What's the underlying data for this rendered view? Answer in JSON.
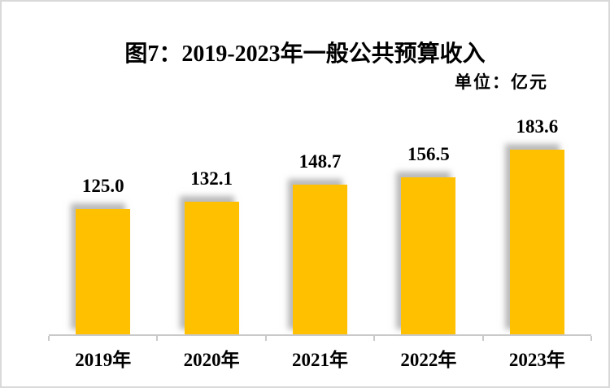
{
  "chart": {
    "title": "图7：2019-2023年一般公共预算收入",
    "unit_label": "单位：亿元"
  },
  "chart_data": {
    "type": "bar",
    "title": "图7：2019-2023年一般公共预算收入",
    "unit": "亿元",
    "categories": [
      "2019年",
      "2020年",
      "2021年",
      "2022年",
      "2023年"
    ],
    "values": [
      125.0,
      132.1,
      148.7,
      156.5,
      183.6
    ],
    "data_labels": [
      "125.0",
      "132.1",
      "148.7",
      "156.5",
      "183.6"
    ],
    "xlabel": "",
    "ylabel": "",
    "ylim": [
      0,
      330
    ],
    "y_axis_visible": false,
    "gridlines": false,
    "legend": "none",
    "colors": {
      "bar_fill": "#ffc000",
      "bar_shadow": "#8c8c8c",
      "axis_line": "#c9c9c9",
      "frame_border": "#d9d9d9",
      "text": "#000000",
      "background": "#ffffff"
    }
  }
}
